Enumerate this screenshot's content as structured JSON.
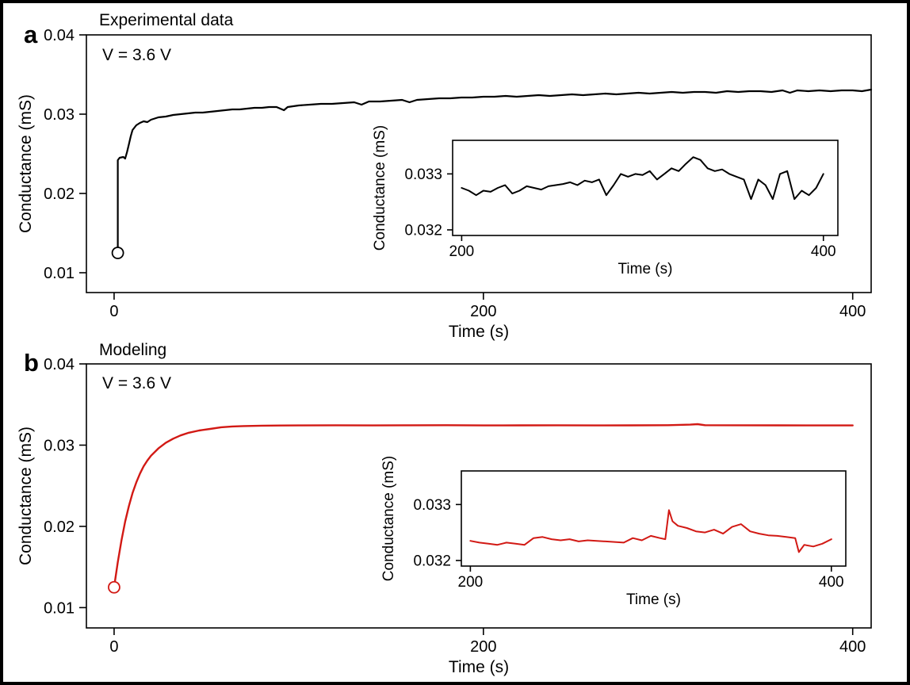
{
  "figure": {
    "background": "#ffffff",
    "border_color": "#000000",
    "panel_labels": [
      "a",
      "b"
    ]
  },
  "chart_data": [
    {
      "id": "panel-a-main",
      "type": "line",
      "panel": "a",
      "title": "Experimental data",
      "annotation": "V = 3.6 V",
      "xlabel": "Time (s)",
      "ylabel": "Conductance (mS)",
      "xlim": [
        -15,
        410
      ],
      "ylim": [
        0.0075,
        0.04
      ],
      "xticks": [
        0,
        200,
        400
      ],
      "xtick_labels": [
        "0",
        "200",
        "400"
      ],
      "yticks": [
        0.01,
        0.02,
        0.03,
        0.04
      ],
      "ytick_labels": [
        "0.01",
        "0.02",
        "0.03",
        "0.04"
      ],
      "grid": false,
      "legend": null,
      "marker": {
        "x": 2,
        "y": 0.0125,
        "style": "open-circle",
        "color": "#000000"
      },
      "series": [
        {
          "name": "experimental",
          "color": "#000000",
          "x": [
            2,
            2,
            3,
            5,
            6,
            7,
            8,
            9,
            10,
            12,
            14,
            16,
            18,
            20,
            24,
            28,
            32,
            36,
            40,
            44,
            48,
            52,
            56,
            60,
            64,
            68,
            72,
            76,
            80,
            84,
            88,
            92,
            94,
            100,
            106,
            112,
            118,
            124,
            130,
            134,
            138,
            144,
            150,
            156,
            160,
            164,
            170,
            176,
            182,
            188,
            194,
            200,
            206,
            212,
            218,
            224,
            230,
            236,
            242,
            248,
            254,
            260,
            266,
            272,
            278,
            284,
            290,
            296,
            302,
            308,
            314,
            320,
            326,
            332,
            338,
            344,
            350,
            356,
            362,
            366,
            370,
            376,
            382,
            388,
            394,
            400,
            405,
            410
          ],
          "y": [
            0.0125,
            0.0242,
            0.0245,
            0.0246,
            0.0244,
            0.0252,
            0.0262,
            0.0272,
            0.028,
            0.0286,
            0.0289,
            0.0291,
            0.029,
            0.0293,
            0.0296,
            0.0297,
            0.0299,
            0.03,
            0.0301,
            0.0302,
            0.0302,
            0.0303,
            0.0304,
            0.0305,
            0.0306,
            0.0306,
            0.0307,
            0.0308,
            0.0308,
            0.0309,
            0.0309,
            0.0305,
            0.0309,
            0.0311,
            0.0312,
            0.0313,
            0.0313,
            0.0314,
            0.0315,
            0.0312,
            0.0316,
            0.0316,
            0.0317,
            0.0318,
            0.0315,
            0.0318,
            0.0319,
            0.032,
            0.032,
            0.0321,
            0.0321,
            0.0322,
            0.0322,
            0.0323,
            0.0322,
            0.0323,
            0.0324,
            0.0323,
            0.0324,
            0.0325,
            0.0324,
            0.0325,
            0.0326,
            0.0325,
            0.0326,
            0.0327,
            0.0326,
            0.0327,
            0.0328,
            0.0327,
            0.0328,
            0.0328,
            0.0327,
            0.0329,
            0.0328,
            0.0329,
            0.0329,
            0.0328,
            0.033,
            0.0327,
            0.033,
            0.0329,
            0.033,
            0.0329,
            0.033,
            0.033,
            0.0329,
            0.0331
          ]
        }
      ]
    },
    {
      "id": "panel-a-inset",
      "type": "line",
      "panel": "a",
      "inset": true,
      "title": "",
      "xlabel": "Time (s)",
      "ylabel": "Conductance (mS)",
      "xlim": [
        195,
        408
      ],
      "ylim": [
        0.0319,
        0.0336
      ],
      "xticks": [
        200,
        400
      ],
      "xtick_labels": [
        "200",
        "400"
      ],
      "yticks": [
        0.032,
        0.033
      ],
      "ytick_labels": [
        "0.032",
        "0.033"
      ],
      "grid": false,
      "legend": null,
      "series": [
        {
          "name": "experimental-zoom",
          "color": "#000000",
          "x": [
            200,
            204,
            208,
            212,
            216,
            220,
            224,
            228,
            232,
            236,
            240,
            244,
            248,
            252,
            256,
            260,
            264,
            268,
            272,
            276,
            280,
            284,
            288,
            292,
            296,
            300,
            304,
            308,
            312,
            316,
            320,
            324,
            328,
            332,
            336,
            340,
            344,
            348,
            352,
            356,
            360,
            364,
            368,
            372,
            376,
            380,
            384,
            388,
            392,
            396,
            400
          ],
          "y": [
            0.03275,
            0.0327,
            0.03262,
            0.0327,
            0.03268,
            0.03275,
            0.0328,
            0.03265,
            0.0327,
            0.03278,
            0.03275,
            0.03272,
            0.03278,
            0.0328,
            0.03282,
            0.03285,
            0.0328,
            0.03288,
            0.03285,
            0.0329,
            0.03262,
            0.0328,
            0.033,
            0.03295,
            0.033,
            0.03298,
            0.03305,
            0.0329,
            0.033,
            0.0331,
            0.03305,
            0.03318,
            0.0333,
            0.03325,
            0.0331,
            0.03305,
            0.03308,
            0.033,
            0.03295,
            0.0329,
            0.03255,
            0.0329,
            0.0328,
            0.03255,
            0.033,
            0.03305,
            0.03255,
            0.0327,
            0.03262,
            0.03275,
            0.033
          ]
        }
      ]
    },
    {
      "id": "panel-b-main",
      "type": "line",
      "panel": "b",
      "title": "Modeling",
      "annotation": "V = 3.6 V",
      "xlabel": "Time (s)",
      "ylabel": "Conductance (mS)",
      "xlim": [
        -15,
        410
      ],
      "ylim": [
        0.0075,
        0.04
      ],
      "xticks": [
        0,
        200,
        400
      ],
      "xtick_labels": [
        "0",
        "200",
        "400"
      ],
      "yticks": [
        0.01,
        0.02,
        0.03,
        0.04
      ],
      "ytick_labels": [
        "0.01",
        "0.02",
        "0.03",
        "0.04"
      ],
      "grid": false,
      "legend": null,
      "marker": {
        "x": 0,
        "y": 0.0125,
        "style": "open-circle",
        "color": "#d21914"
      },
      "series": [
        {
          "name": "model",
          "color": "#d21914",
          "x": [
            0,
            2,
            4,
            6,
            8,
            10,
            12,
            14,
            16,
            18,
            20,
            24,
            28,
            32,
            36,
            40,
            46,
            52,
            58,
            64,
            70,
            80,
            90,
            100,
            120,
            140,
            160,
            180,
            200,
            220,
            240,
            260,
            280,
            300,
            312,
            316,
            320,
            340,
            360,
            380,
            400
          ],
          "y": [
            0.0125,
            0.0156,
            0.0183,
            0.0206,
            0.0225,
            0.0241,
            0.0254,
            0.0265,
            0.0274,
            0.0281,
            0.0287,
            0.0296,
            0.0303,
            0.0308,
            0.0312,
            0.0315,
            0.0318,
            0.032,
            0.0322,
            0.0323,
            0.03235,
            0.0324,
            0.03242,
            0.03243,
            0.03245,
            0.03243,
            0.03245,
            0.03246,
            0.03243,
            0.03244,
            0.03245,
            0.03243,
            0.03244,
            0.03246,
            0.03252,
            0.03258,
            0.03246,
            0.03245,
            0.03244,
            0.03243,
            0.03243
          ]
        }
      ]
    },
    {
      "id": "panel-b-inset",
      "type": "line",
      "panel": "b",
      "inset": true,
      "title": "",
      "xlabel": "Time (s)",
      "ylabel": "Conductance (mS)",
      "xlim": [
        195,
        408
      ],
      "ylim": [
        0.0319,
        0.0336
      ],
      "xticks": [
        200,
        400
      ],
      "xtick_labels": [
        "200",
        "400"
      ],
      "yticks": [
        0.032,
        0.033
      ],
      "ytick_labels": [
        "0.032",
        "0.033"
      ],
      "grid": false,
      "legend": null,
      "series": [
        {
          "name": "model-zoom",
          "color": "#d21914",
          "x": [
            200,
            205,
            210,
            215,
            220,
            225,
            230,
            235,
            240,
            245,
            250,
            255,
            260,
            265,
            270,
            275,
            280,
            285,
            290,
            295,
            300,
            305,
            308,
            310,
            312,
            315,
            320,
            325,
            330,
            335,
            340,
            345,
            350,
            355,
            360,
            365,
            370,
            375,
            380,
            382,
            385,
            390,
            395,
            400
          ],
          "y": [
            0.03235,
            0.03232,
            0.0323,
            0.03228,
            0.03232,
            0.0323,
            0.03228,
            0.0324,
            0.03242,
            0.03238,
            0.03236,
            0.03238,
            0.03234,
            0.03236,
            0.03235,
            0.03234,
            0.03233,
            0.03232,
            0.0324,
            0.03236,
            0.03244,
            0.0324,
            0.03238,
            0.0329,
            0.0327,
            0.03262,
            0.03258,
            0.03252,
            0.0325,
            0.03255,
            0.03248,
            0.0326,
            0.03265,
            0.03252,
            0.03248,
            0.03245,
            0.03244,
            0.03242,
            0.0324,
            0.03215,
            0.03228,
            0.03225,
            0.0323,
            0.03238
          ]
        }
      ]
    }
  ]
}
